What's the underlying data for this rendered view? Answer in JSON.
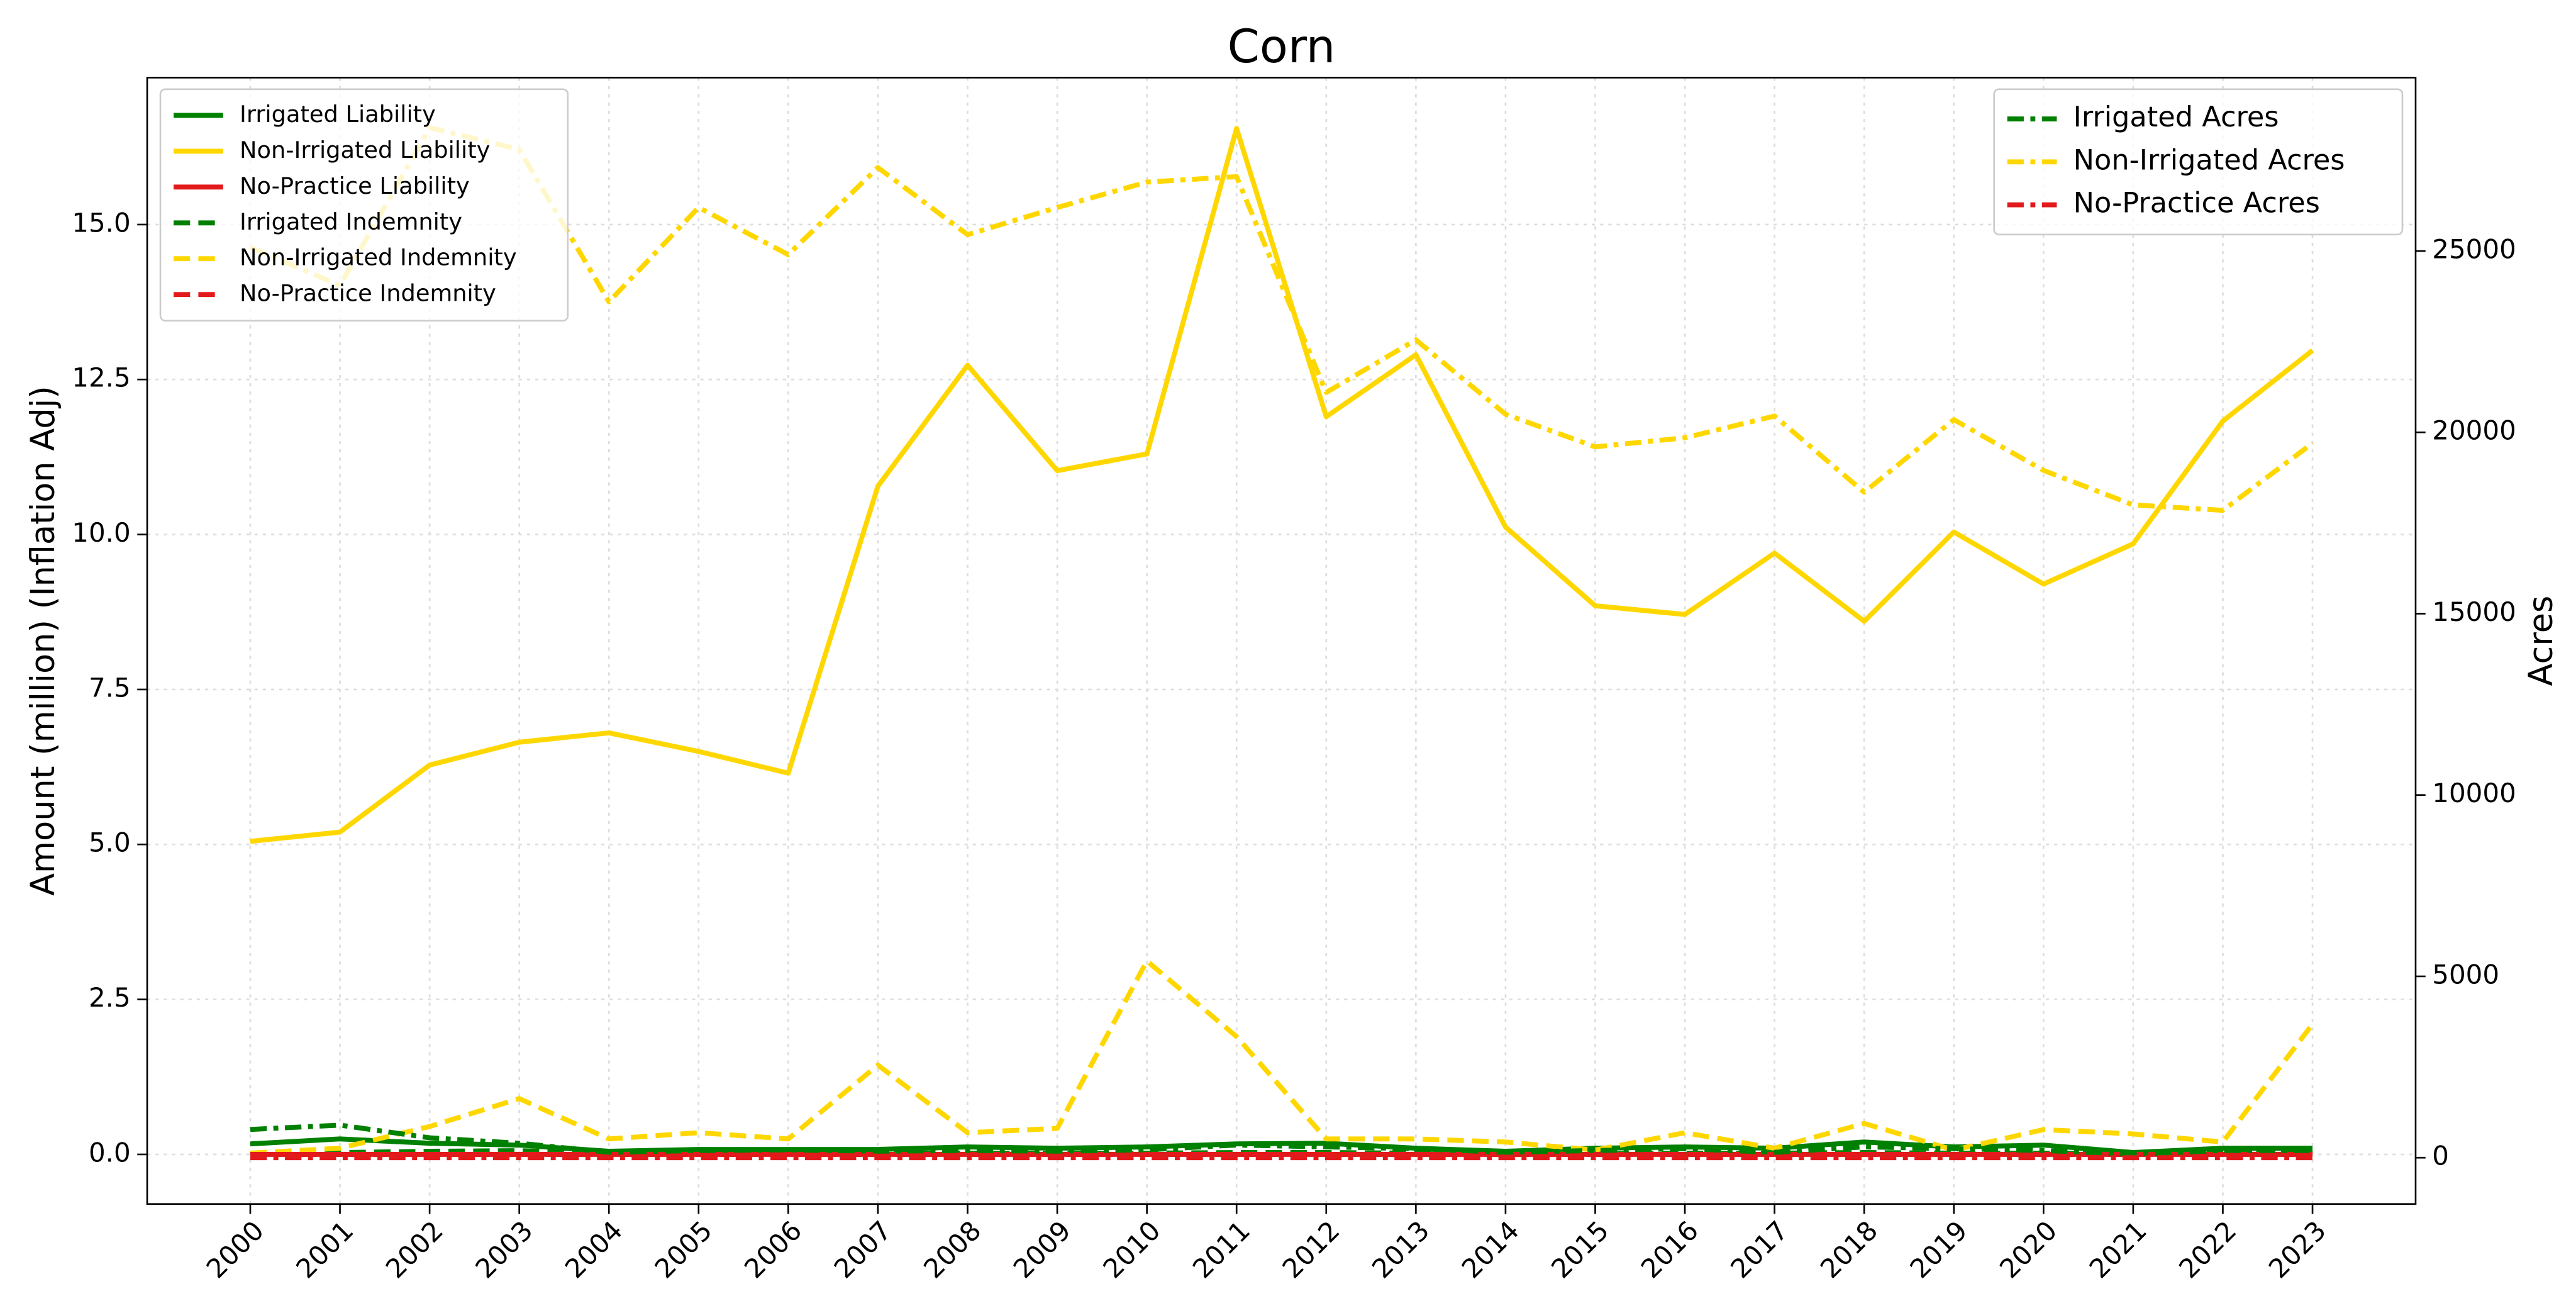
{
  "chart_data": {
    "type": "line",
    "title": "Corn",
    "ylabel": "Amount (million) (Inflation Adj)",
    "y2label": "Acres",
    "x": [
      2000,
      2001,
      2002,
      2003,
      2004,
      2005,
      2006,
      2007,
      2008,
      2009,
      2010,
      2011,
      2012,
      2013,
      2014,
      2015,
      2016,
      2017,
      2018,
      2019,
      2020,
      2021,
      2022,
      2023
    ],
    "xlim": [
      1998.85,
      2024.15
    ],
    "xticks": [
      2000,
      2001,
      2002,
      2003,
      2004,
      2005,
      2006,
      2007,
      2008,
      2009,
      2010,
      2011,
      2012,
      2013,
      2014,
      2015,
      2016,
      2017,
      2018,
      2019,
      2020,
      2021,
      2022,
      2023
    ],
    "ylim": [
      -0.8,
      17.37
    ],
    "yticks": [
      {
        "value": 0,
        "label": "0.0"
      },
      2.5,
      {
        "value": 5,
        "label": "5.0"
      },
      7.5,
      {
        "value": 10,
        "label": "10.0"
      },
      12.5,
      {
        "value": 15,
        "label": "15.0"
      }
    ],
    "y2lim": [
      -1275,
      29780
    ],
    "y2ticks": [
      0,
      5000,
      10000,
      15000,
      20000,
      25000
    ],
    "grid": true,
    "legend_loc": "upper left",
    "legend2_loc": "upper right",
    "series": [
      {
        "name": "Irrigated Liability",
        "color": "#008000",
        "linestyle": "solid",
        "values": [
          0.17,
          0.25,
          0.18,
          0.15,
          0.05,
          0.08,
          0.08,
          0.08,
          0.12,
          0.1,
          0.12,
          0.17,
          0.18,
          0.1,
          0.05,
          0.1,
          0.12,
          0.1,
          0.2,
          0.12,
          0.15,
          0.03,
          0.1,
          0.1
        ]
      },
      {
        "name": "Non-Irrigated Liability",
        "color": "#ffd700",
        "linestyle": "solid",
        "values": [
          5.05,
          5.2,
          6.28,
          6.65,
          6.8,
          6.5,
          6.15,
          10.78,
          12.73,
          11.03,
          11.3,
          16.55,
          11.9,
          12.9,
          10.12,
          8.85,
          8.71,
          9.7,
          8.6,
          10.04,
          9.2,
          9.85,
          11.83,
          12.97
        ]
      },
      {
        "name": "No-Practice Liability",
        "color": "#e31a1c",
        "linestyle": "solid",
        "values": [
          0,
          0,
          0,
          0,
          0,
          0,
          0,
          0,
          0,
          0,
          0,
          0,
          0,
          0,
          0,
          0,
          0,
          0,
          0,
          0,
          0,
          0,
          0,
          0
        ]
      },
      {
        "name": "Irrigated Indemnity",
        "color": "#008000",
        "linestyle": "dashed",
        "values": [
          0.02,
          0.03,
          0.05,
          0.06,
          0.02,
          0.02,
          0.03,
          0.02,
          0.02,
          0.02,
          0.02,
          0.03,
          0.03,
          0.02,
          0.02,
          0.01,
          0.02,
          0.02,
          0.03,
          0.02,
          0.02,
          0.01,
          0.02,
          0.02
        ]
      },
      {
        "name": "Non-Irrigated Indemnity",
        "color": "#ffd700",
        "linestyle": "dashed",
        "values": [
          0.02,
          0.1,
          0.45,
          0.9,
          0.25,
          0.35,
          0.25,
          1.44,
          0.35,
          0.42,
          3.12,
          1.9,
          0.25,
          0.25,
          0.2,
          0.07,
          0.35,
          0.1,
          0.5,
          0.07,
          0.4,
          0.33,
          0.2,
          2.1
        ]
      },
      {
        "name": "No-Practice Indemnity",
        "color": "#e31a1c",
        "linestyle": "dashed",
        "values": [
          0,
          0,
          0,
          0,
          0,
          0,
          0,
          0,
          0,
          0,
          0,
          0,
          0,
          0,
          0,
          0,
          0,
          0,
          0,
          0,
          0,
          0,
          0,
          0
        ]
      },
      {
        "name": "Irrigated Acres",
        "color": "#008000",
        "linestyle": "dashdot",
        "axis": "y2",
        "values": [
          780,
          900,
          550,
          400,
          150,
          200,
          220,
          180,
          200,
          180,
          220,
          350,
          300,
          250,
          150,
          200,
          250,
          150,
          300,
          250,
          200,
          100,
          200,
          200
        ]
      },
      {
        "name": "Non-Irrigated Acres",
        "color": "#ffd700",
        "linestyle": "dashdot",
        "axis": "y2",
        "values": [
          25100,
          24050,
          28400,
          27800,
          23600,
          26200,
          24900,
          27300,
          25450,
          26200,
          26900,
          27050,
          21100,
          22550,
          20500,
          19600,
          19850,
          20450,
          18350,
          20350,
          18950,
          18000,
          17850,
          19700
        ]
      },
      {
        "name": "No-Practice Acres",
        "color": "#e31a1c",
        "linestyle": "dashdot",
        "axis": "y2",
        "values": [
          0,
          0,
          0,
          0,
          0,
          0,
          0,
          0,
          0,
          0,
          0,
          0,
          0,
          0,
          0,
          0,
          0,
          0,
          0,
          0,
          0,
          0,
          0,
          0
        ]
      }
    ]
  }
}
